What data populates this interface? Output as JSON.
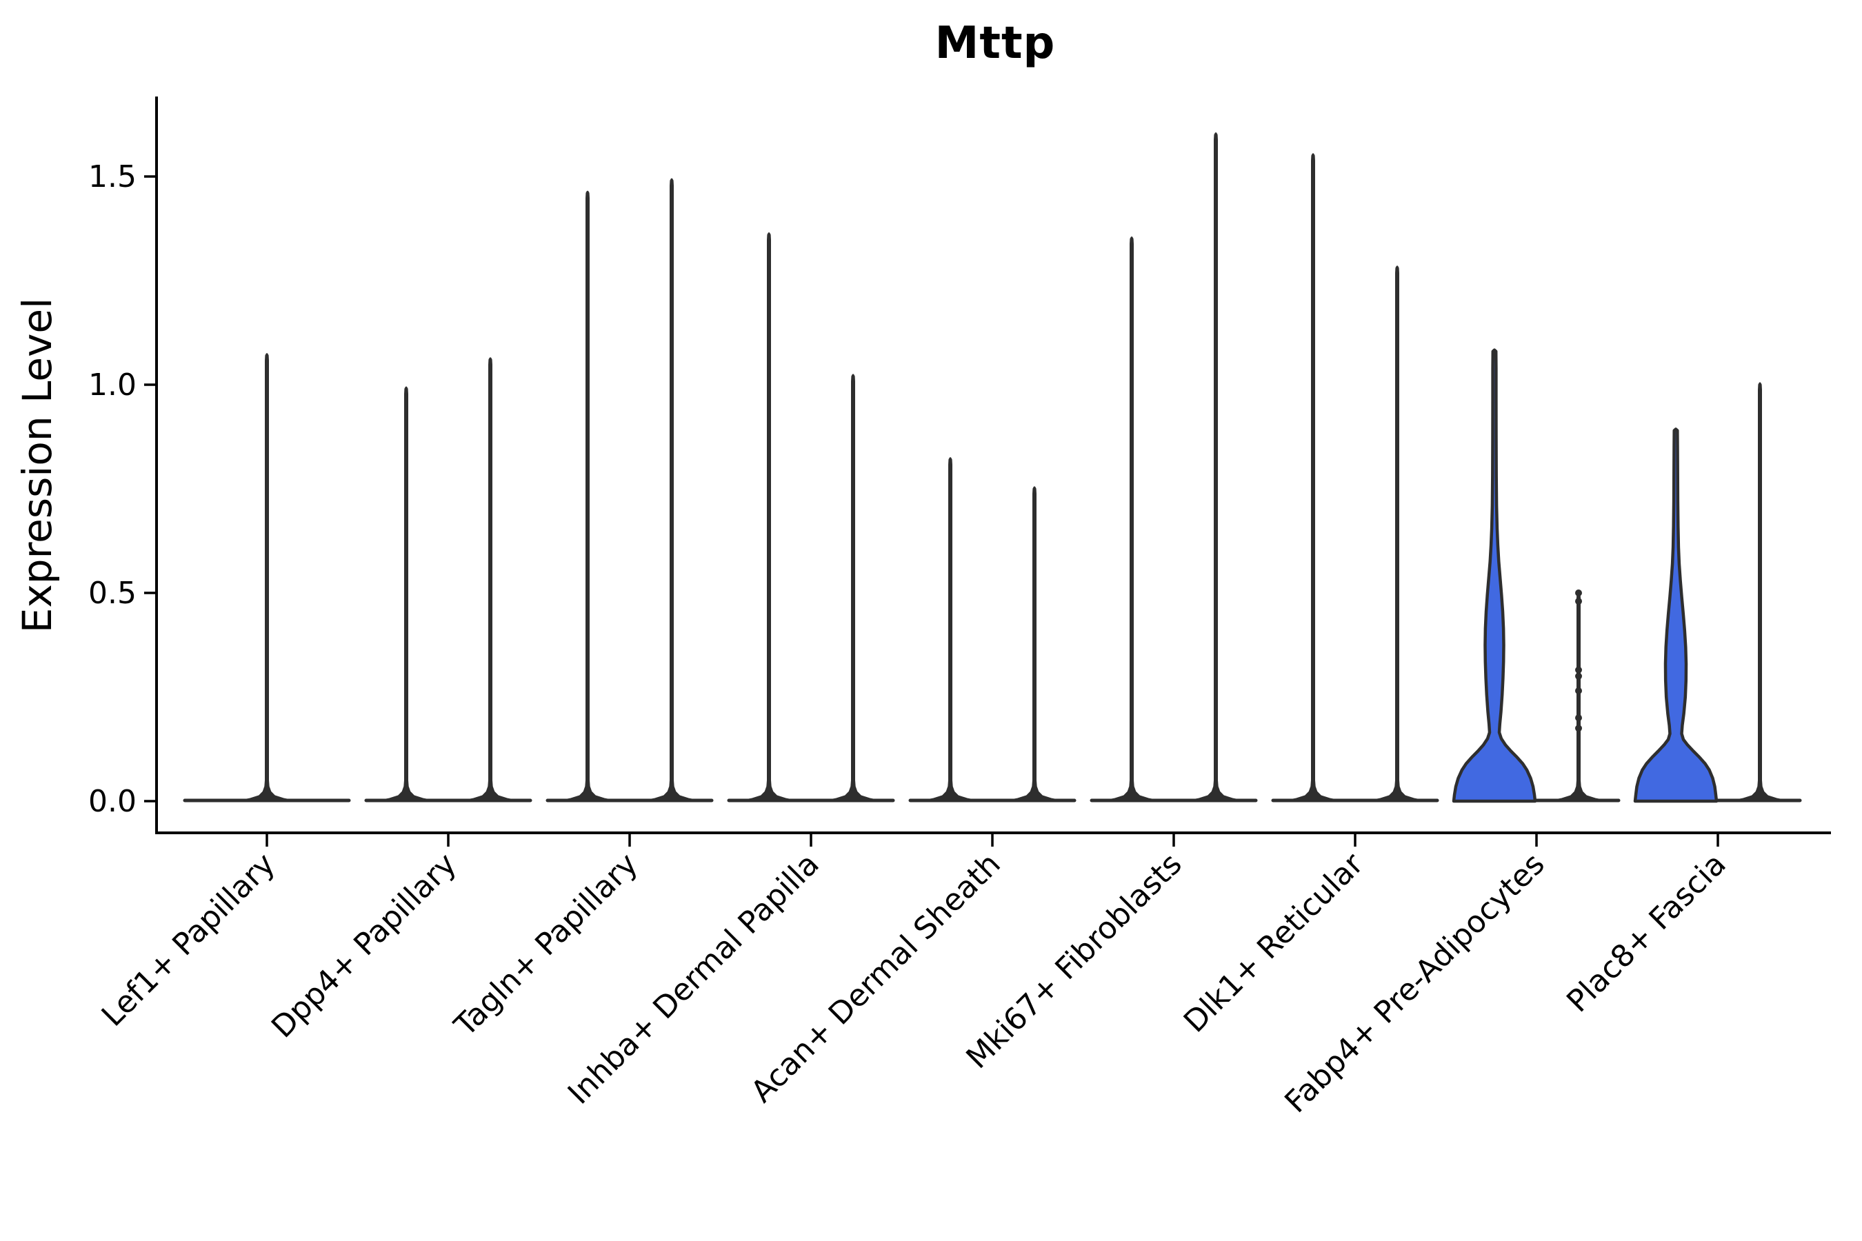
{
  "title": "Mttp",
  "y_axis": {
    "label": "Expression Level",
    "tick_labels": [
      "0.0",
      "0.5",
      "1.0",
      "1.5"
    ],
    "tick_values": [
      0.0,
      0.5,
      1.0,
      1.5
    ]
  },
  "colors": {
    "violin_fill": "#4169E1",
    "violin_stroke": "#2E2E2E",
    "axis": "#000000",
    "background": "#FFFFFF"
  },
  "chart_data": {
    "type": "violin",
    "title": "Mttp",
    "xlabel": "",
    "ylabel": "Expression Level",
    "ylim": [
      0,
      1.69
    ],
    "yticks": [
      0.0,
      0.5,
      1.0,
      1.5
    ],
    "grid": false,
    "legend": false,
    "categories": [
      "Lef1+ Papillary",
      "Dpp4+ Papillary",
      "Tagln+ Papillary",
      "Inhba+ Dermal Papilla",
      "Acan+ Dermal Sheath",
      "Mki67+ Fibroblasts",
      "Dlk1+ Reticular",
      "Fabp4+ Pre-Adipocytes",
      "Plac8+ Fascia"
    ],
    "description": "Violin plot of Mttp expression per cluster; most violins collapse to a flat base at 0 with a thin spike to the max expressing cell; Fabp4+ Pre-Adipocytes and Plac8+ Fascia left violins show filled density bellies.",
    "violins": [
      {
        "category": "Lef1+ Papillary",
        "slot": "full",
        "max_expression": 1.07,
        "kind": "spike"
      },
      {
        "category": "Dpp4+ Papillary",
        "slot": "left",
        "max_expression": 0.99,
        "kind": "spike"
      },
      {
        "category": "Dpp4+ Papillary",
        "slot": "right",
        "max_expression": 1.06,
        "kind": "spike"
      },
      {
        "category": "Tagln+ Papillary",
        "slot": "left",
        "max_expression": 1.46,
        "kind": "spike"
      },
      {
        "category": "Tagln+ Papillary",
        "slot": "right",
        "max_expression": 1.49,
        "kind": "spike"
      },
      {
        "category": "Inhba+ Dermal Papilla",
        "slot": "left",
        "max_expression": 1.36,
        "kind": "spike"
      },
      {
        "category": "Inhba+ Dermal Papilla",
        "slot": "right",
        "max_expression": 1.02,
        "kind": "spike"
      },
      {
        "category": "Acan+ Dermal Sheath",
        "slot": "left",
        "max_expression": 0.82,
        "kind": "spike"
      },
      {
        "category": "Acan+ Dermal Sheath",
        "slot": "right",
        "max_expression": 0.75,
        "kind": "spike"
      },
      {
        "category": "Mki67+ Fibroblasts",
        "slot": "left",
        "max_expression": 1.35,
        "kind": "spike"
      },
      {
        "category": "Mki67+ Fibroblasts",
        "slot": "right",
        "max_expression": 1.6,
        "kind": "spike"
      },
      {
        "category": "Dlk1+ Reticular",
        "slot": "left",
        "max_expression": 1.55,
        "kind": "spike"
      },
      {
        "category": "Dlk1+ Reticular",
        "slot": "right",
        "max_expression": 1.28,
        "kind": "spike"
      },
      {
        "category": "Fabp4+ Pre-Adipocytes",
        "slot": "left",
        "max_expression": 1.08,
        "kind": "filled",
        "profile": [
          [
            0,
            59
          ],
          [
            0.015,
            58
          ],
          [
            0.035,
            56
          ],
          [
            0.055,
            52.5
          ],
          [
            0.075,
            47
          ],
          [
            0.09,
            41
          ],
          [
            0.105,
            33
          ],
          [
            0.12,
            24
          ],
          [
            0.135,
            16
          ],
          [
            0.15,
            10
          ],
          [
            0.165,
            7
          ],
          [
            0.185,
            7.8
          ],
          [
            0.215,
            9.5
          ],
          [
            0.255,
            11.2
          ],
          [
            0.295,
            12.4
          ],
          [
            0.335,
            13.2
          ],
          [
            0.375,
            13.5
          ],
          [
            0.415,
            13.1
          ],
          [
            0.455,
            12
          ],
          [
            0.495,
            10.3
          ],
          [
            0.535,
            8.3
          ],
          [
            0.575,
            6.3
          ],
          [
            0.615,
            4.9
          ],
          [
            0.655,
            3.9
          ],
          [
            0.71,
            3.1
          ],
          [
            0.78,
            2.7
          ],
          [
            0.87,
            2.5
          ],
          [
            0.97,
            2.4
          ],
          [
            1.04,
            2.4
          ],
          [
            1.08,
            2.2
          ]
        ]
      },
      {
        "category": "Fabp4+ Pre-Adipocytes",
        "slot": "right",
        "max_expression": 0.5,
        "kind": "spike",
        "points": [
          0.5,
          0.48,
          0.315,
          0.3,
          0.265,
          0.2,
          0.175
        ]
      },
      {
        "category": "Plac8+ Fascia",
        "slot": "left",
        "max_expression": 0.89,
        "kind": "filled",
        "profile": [
          [
            0,
            59
          ],
          [
            0.015,
            58
          ],
          [
            0.035,
            56.5
          ],
          [
            0.055,
            53.5
          ],
          [
            0.075,
            48.5
          ],
          [
            0.09,
            42.5
          ],
          [
            0.105,
            34.5
          ],
          [
            0.12,
            25.5
          ],
          [
            0.135,
            17
          ],
          [
            0.148,
            11
          ],
          [
            0.162,
            8.5
          ],
          [
            0.182,
            9.4
          ],
          [
            0.21,
            11.6
          ],
          [
            0.25,
            13.8
          ],
          [
            0.29,
            14.8
          ],
          [
            0.33,
            15
          ],
          [
            0.37,
            14.3
          ],
          [
            0.41,
            12.8
          ],
          [
            0.45,
            10.8
          ],
          [
            0.49,
            8.6
          ],
          [
            0.53,
            6.6
          ],
          [
            0.57,
            4.9
          ],
          [
            0.61,
            3.9
          ],
          [
            0.66,
            3.3
          ],
          [
            0.72,
            2.9
          ],
          [
            0.79,
            2.7
          ],
          [
            0.85,
            2.5
          ],
          [
            0.89,
            2.3
          ]
        ]
      },
      {
        "category": "Plac8+ Fascia",
        "slot": "right",
        "max_expression": 1.0,
        "kind": "spike"
      }
    ]
  }
}
